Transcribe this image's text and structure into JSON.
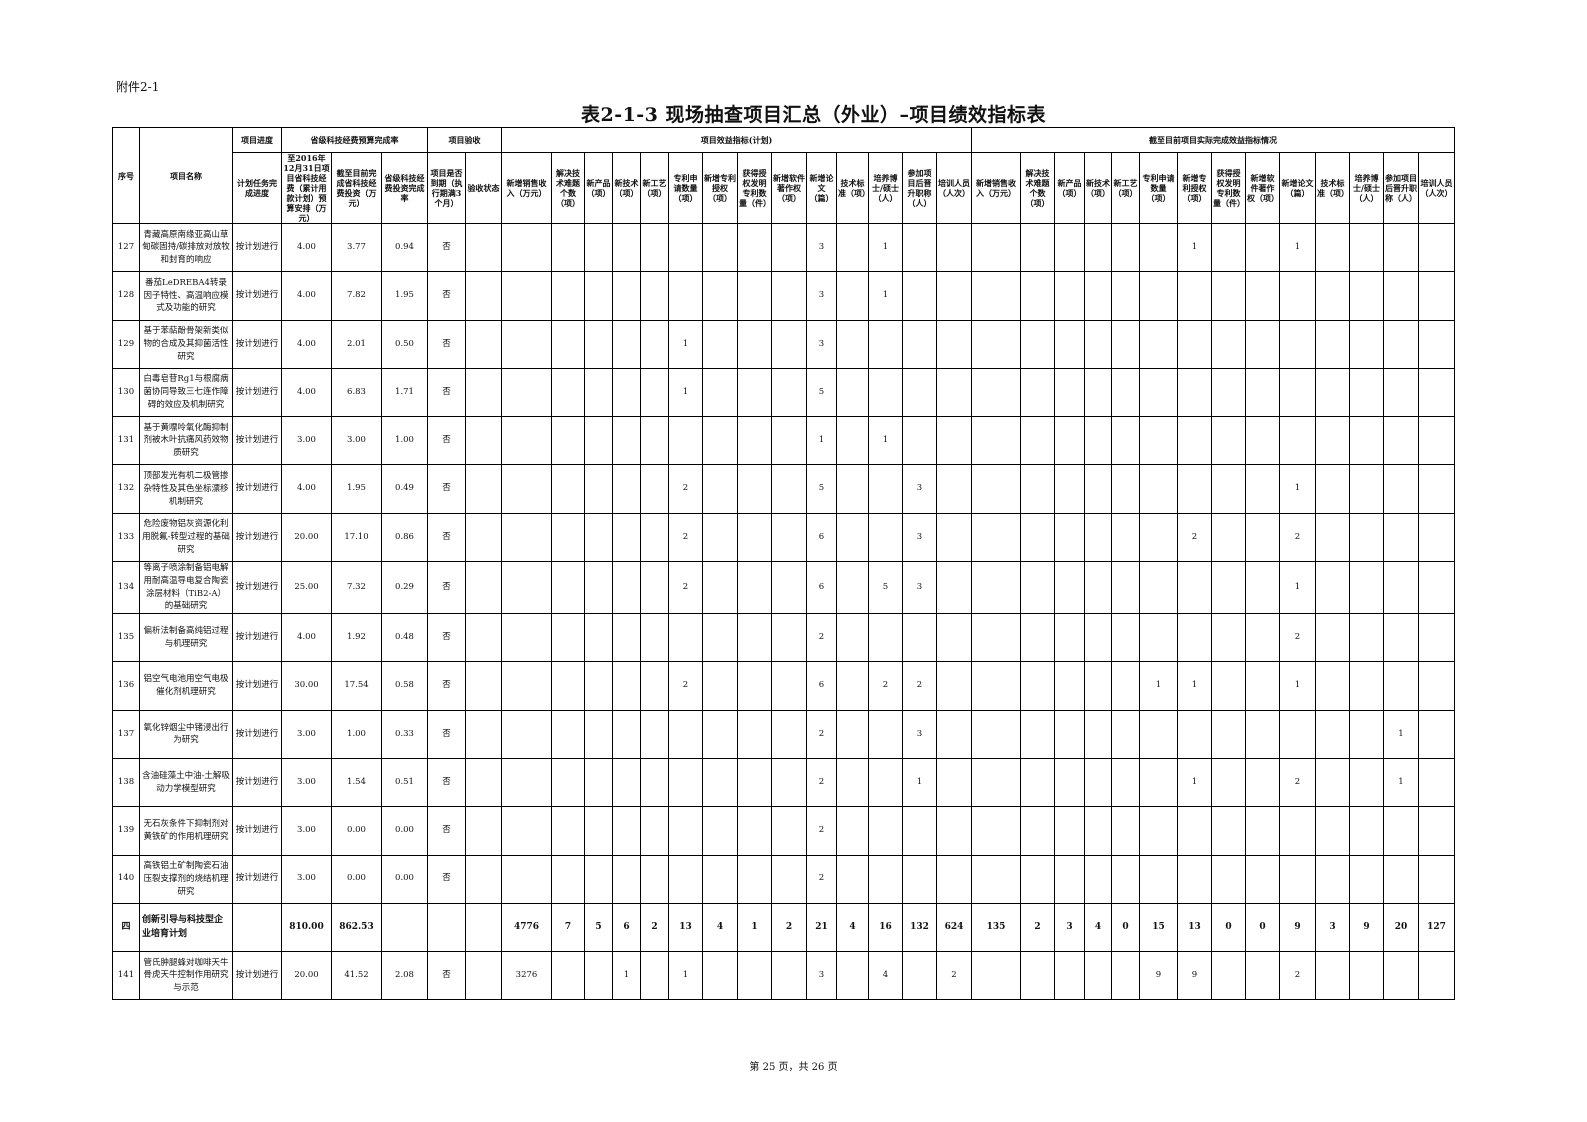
{
  "attachment_label": "附件2-1",
  "title": "表2-1-3 现场抽查项目汇总（外业）–项目绩效指标表",
  "footer": "第 25 页，共 26 页",
  "header": {
    "no": "序号",
    "name": "项目名称",
    "progress_group": "项目进度",
    "progress": "计划任务完成进度",
    "budget_group": "省级科技经费预算完成率",
    "budget": [
      "至2016年12月31日项目省科技经费（累计用款计划）预算安排（万元）",
      "截至目前完成省科技经费投资（万元）",
      "省级科技经费投资完成率"
    ],
    "acceptance_group": "项目验收",
    "acceptance": [
      "项目是否到期（执行期满3个月）",
      "验收状态"
    ],
    "plan_group": "项目效益指标(计划)",
    "actual_group": "截至目前项目实际完成效益指标情况",
    "plan_cols": [
      "新增销售收入（万元）",
      "解决技术难题个数（项）",
      "新产品（项）",
      "新技术（项）",
      "新工艺（项）",
      "专利申请数量（项）",
      "新增专利授权（项）",
      "获得授权发明专利数量（件）",
      "新增软件著作权（项）",
      "新增论文（篇）",
      "技术标准（项）",
      "培养博士/硕士（人）",
      "参加项目后晋升职称（人）",
      "培训人员（人次）"
    ],
    "actual_cols": [
      "新增销售收入（万元）",
      "解决技术难题个数（项）",
      "新产品（项）",
      "新技术（项）",
      "新工艺（项）",
      "专利申请数量（项）",
      "新增专利授权（项）",
      "获得授权发明专利数量（件）",
      "新增软件著作权（项）",
      "新增论文（篇）",
      "技术标准（项）",
      "培养博士/硕士（人）",
      "参加项目后晋升职称（人）",
      "培训人员（人次）"
    ]
  },
  "rows": [
    {
      "no": "127",
      "name": "青藏高原南缘亚高山草甸碳固持/碳排放对放牧和封育的响应",
      "progress": "按计划进行",
      "budget": [
        "4.00",
        "3.77",
        "0.94"
      ],
      "acceptance": [
        "否",
        ""
      ],
      "plan": [
        "",
        "",
        "",
        "",
        "",
        "",
        "",
        "",
        "",
        "3",
        "",
        "1",
        "",
        ""
      ],
      "actual": [
        "",
        "",
        "",
        "",
        "",
        "",
        "1",
        "",
        "",
        "1",
        "",
        "",
        "",
        ""
      ]
    },
    {
      "no": "128",
      "name": "番茄LeDREBA4转录因子特性、高温响应模式及功能的研究",
      "progress": "按计划进行",
      "budget": [
        "4.00",
        "7.82",
        "1.95"
      ],
      "acceptance": [
        "否",
        ""
      ],
      "plan": [
        "",
        "",
        "",
        "",
        "",
        "",
        "",
        "",
        "",
        "3",
        "",
        "1",
        "",
        ""
      ],
      "actual": [
        "",
        "",
        "",
        "",
        "",
        "",
        "",
        "",
        "",
        "",
        "",
        "",
        "",
        ""
      ]
    },
    {
      "no": "129",
      "name": "基于苯萜酚骨架新类似物的合成及其抑菌活性研究",
      "progress": "按计划进行",
      "budget": [
        "4.00",
        "2.01",
        "0.50"
      ],
      "acceptance": [
        "否",
        ""
      ],
      "plan": [
        "",
        "",
        "",
        "",
        "",
        "1",
        "",
        "",
        "",
        "3",
        "",
        "",
        "",
        ""
      ],
      "actual": [
        "",
        "",
        "",
        "",
        "",
        "",
        "",
        "",
        "",
        "",
        "",
        "",
        "",
        ""
      ]
    },
    {
      "no": "130",
      "name": "白毒皂苷Rg1与根腐病菌协同导致三七连作障碍的效应及机制研究",
      "progress": "按计划进行",
      "budget": [
        "4.00",
        "6.83",
        "1.71"
      ],
      "acceptance": [
        "否",
        ""
      ],
      "plan": [
        "",
        "",
        "",
        "",
        "",
        "1",
        "",
        "",
        "",
        "5",
        "",
        "",
        "",
        ""
      ],
      "actual": [
        "",
        "",
        "",
        "",
        "",
        "",
        "",
        "",
        "",
        "",
        "",
        "",
        "",
        ""
      ]
    },
    {
      "no": "131",
      "name": "基于黄嘌呤氧化酶抑制剂被木叶抗痛风药效物质研究",
      "progress": "按计划进行",
      "budget": [
        "3.00",
        "3.00",
        "1.00"
      ],
      "acceptance": [
        "否",
        ""
      ],
      "plan": [
        "",
        "",
        "",
        "",
        "",
        "",
        "",
        "",
        "",
        "1",
        "",
        "1",
        "",
        ""
      ],
      "actual": [
        "",
        "",
        "",
        "",
        "",
        "",
        "",
        "",
        "",
        "",
        "",
        "",
        "",
        ""
      ]
    },
    {
      "no": "132",
      "name": "顶部发光有机二极管掺杂特性及其色坐标漂移机制研究",
      "progress": "按计划进行",
      "budget": [
        "4.00",
        "1.95",
        "0.49"
      ],
      "acceptance": [
        "否",
        ""
      ],
      "plan": [
        "",
        "",
        "",
        "",
        "",
        "2",
        "",
        "",
        "",
        "5",
        "",
        "",
        "3",
        ""
      ],
      "actual": [
        "",
        "",
        "",
        "",
        "",
        "",
        "",
        "",
        "",
        "1",
        "",
        "",
        "",
        ""
      ]
    },
    {
      "no": "133",
      "name": "危险废物铝灰资源化利用脱氟-转型过程的基础研究",
      "progress": "按计划进行",
      "budget": [
        "20.00",
        "17.10",
        "0.86"
      ],
      "acceptance": [
        "否",
        ""
      ],
      "plan": [
        "",
        "",
        "",
        "",
        "",
        "2",
        "",
        "",
        "",
        "6",
        "",
        "",
        "3",
        ""
      ],
      "actual": [
        "",
        "",
        "",
        "",
        "",
        "",
        "2",
        "",
        "",
        "2",
        "",
        "",
        "",
        ""
      ]
    },
    {
      "no": "134",
      "name": "等离子喷涂制备铝电解用耐高温导电复合陶瓷涂层材料（TiB2-A）的基础研究",
      "progress": "按计划进行",
      "budget": [
        "25.00",
        "7.32",
        "0.29"
      ],
      "acceptance": [
        "否",
        ""
      ],
      "plan": [
        "",
        "",
        "",
        "",
        "",
        "2",
        "",
        "",
        "",
        "6",
        "",
        "5",
        "3",
        ""
      ],
      "actual": [
        "",
        "",
        "",
        "",
        "",
        "",
        "",
        "",
        "",
        "1",
        "",
        "",
        "",
        ""
      ]
    },
    {
      "no": "135",
      "name": "偏析法制备高纯铝过程与机理研究",
      "progress": "按计划进行",
      "budget": [
        "4.00",
        "1.92",
        "0.48"
      ],
      "acceptance": [
        "否",
        ""
      ],
      "plan": [
        "",
        "",
        "",
        "",
        "",
        "",
        "",
        "",
        "",
        "2",
        "",
        "",
        "",
        ""
      ],
      "actual": [
        "",
        "",
        "",
        "",
        "",
        "",
        "",
        "",
        "",
        "2",
        "",
        "",
        "",
        ""
      ]
    },
    {
      "no": "136",
      "name": "铝空气电池用空气电极催化剂机理研究",
      "progress": "按计划进行",
      "budget": [
        "30.00",
        "17.54",
        "0.58"
      ],
      "acceptance": [
        "否",
        ""
      ],
      "plan": [
        "",
        "",
        "",
        "",
        "",
        "2",
        "",
        "",
        "",
        "6",
        "",
        "2",
        "2",
        ""
      ],
      "actual": [
        "",
        "",
        "",
        "",
        "",
        "1",
        "1",
        "",
        "",
        "1",
        "",
        "",
        "",
        ""
      ]
    },
    {
      "no": "137",
      "name": "氧化锌烟尘中锗浸出行为研究",
      "progress": "按计划进行",
      "budget": [
        "3.00",
        "1.00",
        "0.33"
      ],
      "acceptance": [
        "否",
        ""
      ],
      "plan": [
        "",
        "",
        "",
        "",
        "",
        "",
        "",
        "",
        "",
        "2",
        "",
        "",
        "3",
        ""
      ],
      "actual": [
        "",
        "",
        "",
        "",
        "",
        "",
        "",
        "",
        "",
        "",
        "",
        "",
        "1",
        ""
      ]
    },
    {
      "no": "138",
      "name": "含油硅藻土中油-土解吸动力学模型研究",
      "progress": "按计划进行",
      "budget": [
        "3.00",
        "1.54",
        "0.51"
      ],
      "acceptance": [
        "否",
        ""
      ],
      "plan": [
        "",
        "",
        "",
        "",
        "",
        "",
        "",
        "",
        "",
        "2",
        "",
        "",
        "1",
        ""
      ],
      "actual": [
        "",
        "",
        "",
        "",
        "",
        "",
        "1",
        "",
        "",
        "2",
        "",
        "",
        "1",
        ""
      ]
    },
    {
      "no": "139",
      "name": "无石灰条件下抑制剂对黄铁矿的作用机理研究",
      "progress": "按计划进行",
      "budget": [
        "3.00",
        "0.00",
        "0.00"
      ],
      "acceptance": [
        "否",
        ""
      ],
      "plan": [
        "",
        "",
        "",
        "",
        "",
        "",
        "",
        "",
        "",
        "2",
        "",
        "",
        "",
        ""
      ],
      "actual": [
        "",
        "",
        "",
        "",
        "",
        "",
        "",
        "",
        "",
        "",
        "",
        "",
        "",
        ""
      ]
    },
    {
      "no": "140",
      "name": "高铁铝土矿制陶瓷石油压裂支撑剂的烧结机理研究",
      "progress": "按计划进行",
      "budget": [
        "3.00",
        "0.00",
        "0.00"
      ],
      "acceptance": [
        "否",
        ""
      ],
      "plan": [
        "",
        "",
        "",
        "",
        "",
        "",
        "",
        "",
        "",
        "2",
        "",
        "",
        "",
        ""
      ],
      "actual": [
        "",
        "",
        "",
        "",
        "",
        "",
        "",
        "",
        "",
        "",
        "",
        "",
        "",
        ""
      ]
    },
    {
      "no": "四",
      "name": "创新引导与科技型企业培育计划",
      "progress": "",
      "budget": [
        "810.00",
        "862.53",
        ""
      ],
      "acceptance": [
        "",
        ""
      ],
      "plan": [
        "4776",
        "7",
        "5",
        "6",
        "2",
        "13",
        "4",
        "1",
        "2",
        "21",
        "4",
        "16",
        "132",
        "624"
      ],
      "actual": [
        "135",
        "2",
        "3",
        "4",
        "0",
        "15",
        "13",
        "0",
        "0",
        "9",
        "3",
        "9",
        "20",
        "127"
      ],
      "summary": true
    },
    {
      "no": "141",
      "name": "管氏肿腿蜂对咖啡天牛骨虎天牛控制作用研究与示范",
      "progress": "按计划进行",
      "budget": [
        "20.00",
        "41.52",
        "2.08"
      ],
      "acceptance": [
        "否",
        ""
      ],
      "plan": [
        "3276",
        "",
        "",
        "1",
        "",
        "1",
        "",
        "",
        "",
        "3",
        "",
        "4",
        "",
        "2"
      ],
      "actual": [
        "",
        "",
        "",
        "",
        "",
        "9",
        "9",
        "",
        "",
        "2",
        "",
        "",
        "",
        ""
      ]
    }
  ]
}
